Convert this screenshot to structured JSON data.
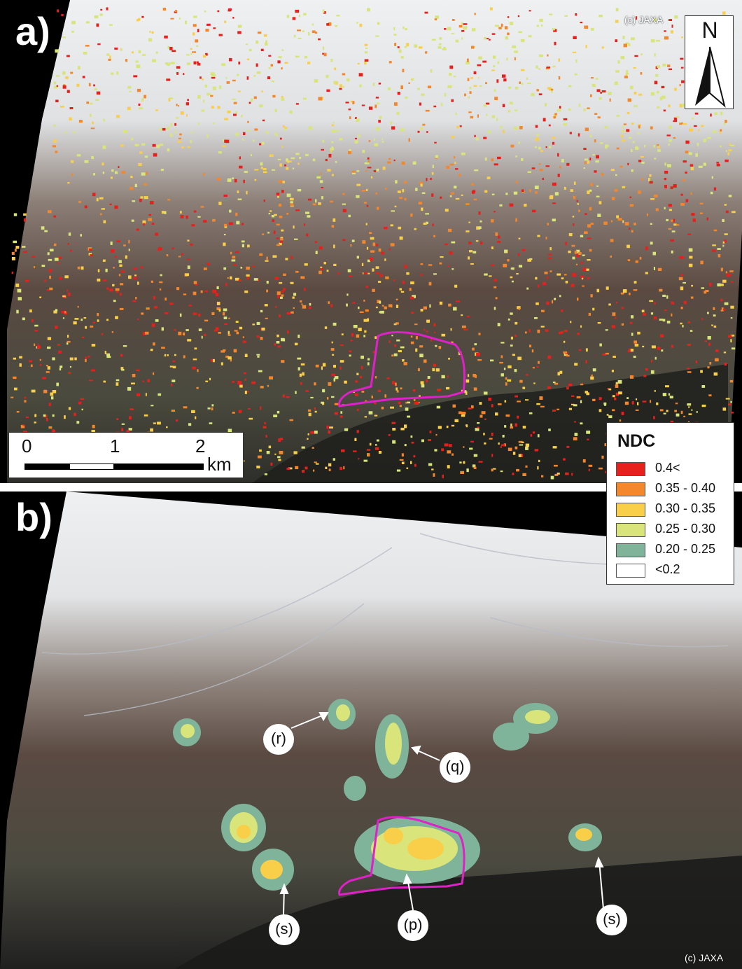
{
  "panel_a": {
    "label": "a)",
    "credit": "(c) JAXA",
    "north_label": "N",
    "scale": {
      "ticks": [
        "0",
        "1",
        "2"
      ],
      "unit": "km"
    }
  },
  "panel_b": {
    "label": "b)",
    "credit": "(c) JAXA",
    "callouts": [
      "(r)",
      "(q)",
      "(s)",
      "(p)",
      "(s)"
    ]
  },
  "legend": {
    "title": "NDC",
    "classes": [
      {
        "label": "0.4<",
        "color": "#e8201c"
      },
      {
        "label": "0.35 - 0.40",
        "color": "#f4862c"
      },
      {
        "label": "0.30 - 0.35",
        "color": "#f9cf4a"
      },
      {
        "label": "0.25 - 0.30",
        "color": "#d9e57a"
      },
      {
        "label": "0.20 - 0.25",
        "color": "#7fb39a"
      },
      {
        "label": "<0.2",
        "color": "#ffffff"
      }
    ]
  },
  "colors": {
    "outline": "#e020c8",
    "snow": "#eef0f2",
    "terrain": "#5a4a42",
    "valley": "#3a3a36"
  }
}
